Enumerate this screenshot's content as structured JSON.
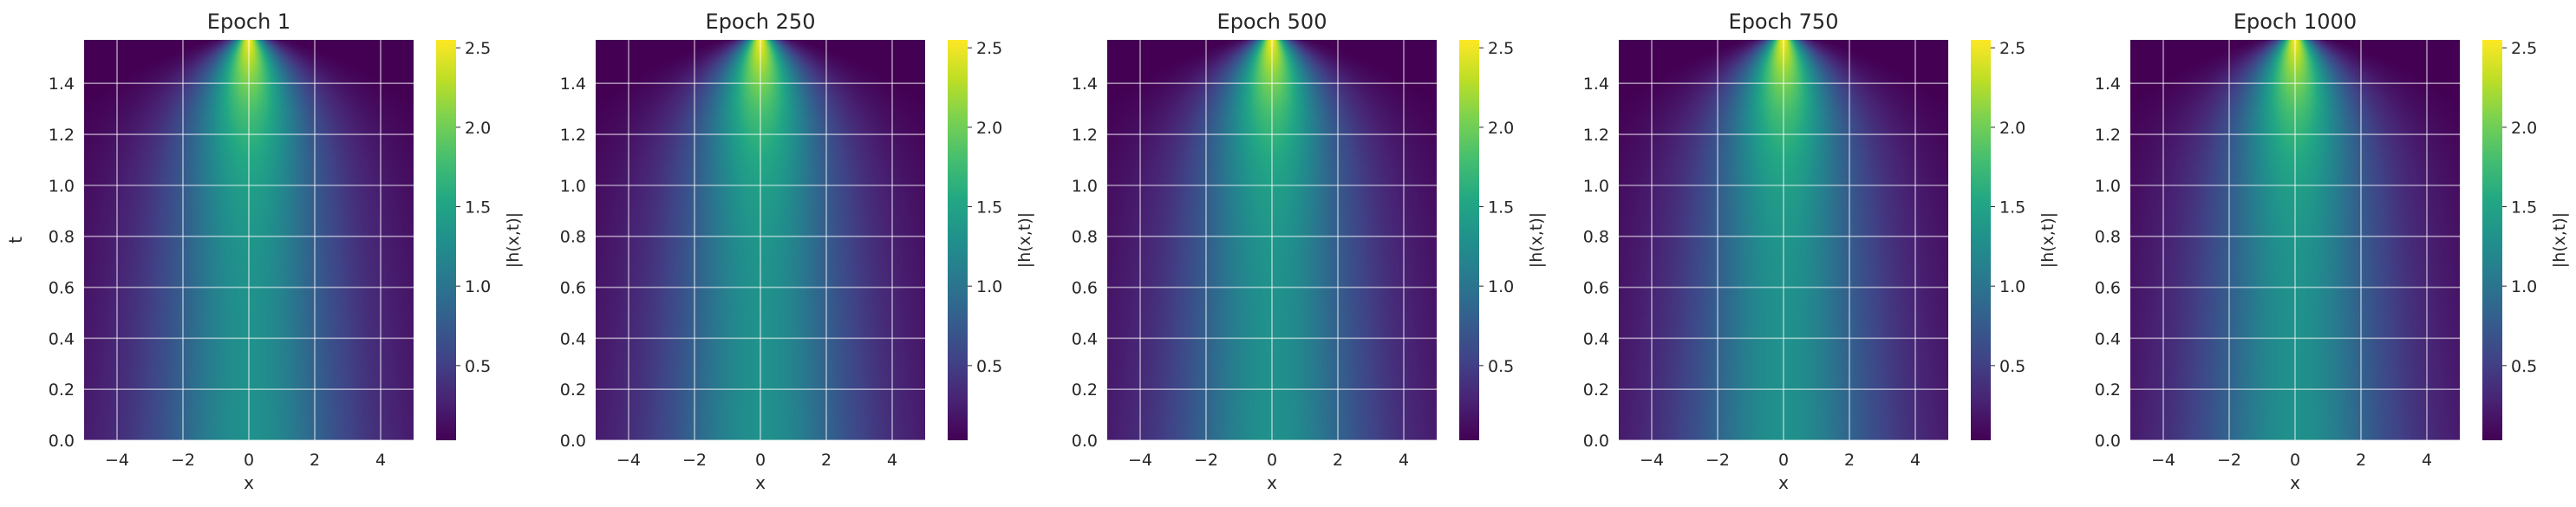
{
  "chart_data": {
    "type": "heatmap",
    "colormap": "viridis",
    "grid": true,
    "x_range": [
      -5,
      5
    ],
    "t_range": [
      0,
      1.5708
    ],
    "color_range": [
      0.03,
      2.55
    ],
    "x_ticks": [
      "−4",
      "−2",
      "0",
      "2",
      "4"
    ],
    "t_ticks": [
      "0.0",
      "0.2",
      "0.4",
      "0.6",
      "0.8",
      "1.0",
      "1.2",
      "1.4"
    ],
    "colorbar_ticks": [
      "0.5",
      "1.0",
      "1.5",
      "2.0",
      "2.5"
    ],
    "xlabel": "x",
    "ylabel": "t",
    "colorbar_label": "|h(x,t)|",
    "panels": [
      {
        "title": "Epoch 1"
      },
      {
        "title": "Epoch 250"
      },
      {
        "title": "Epoch 500"
      },
      {
        "title": "Epoch 750"
      },
      {
        "title": "Epoch 1000"
      }
    ],
    "field_samples": {
      "description_values": "|h| at x=0 along t",
      "t": [
        0.0,
        0.4,
        0.8,
        1.2,
        1.4,
        1.5708
      ],
      "peak_amplitude": [
        1.3,
        1.3,
        1.35,
        1.9,
        2.4,
        2.55
      ]
    }
  }
}
